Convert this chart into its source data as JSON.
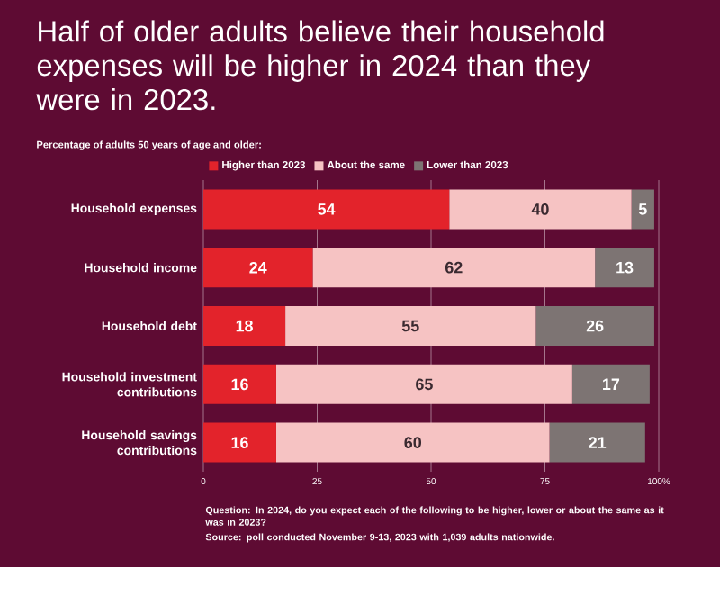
{
  "chart_data": {
    "type": "bar",
    "orientation": "horizontal",
    "stacked": true,
    "data_labels": true,
    "title": "Half of older adults believe their household expenses will be higher in 2024 than they were in 2023.",
    "subtitle": "Percentage of adults 50 years of age and older:",
    "categories": [
      "Household expenses",
      "Household income",
      "Household debt",
      "Household investment contributions",
      "Household savings contributions"
    ],
    "series": [
      {
        "name": "Higher than 2023",
        "color": "#e3232b",
        "values": [
          54,
          24,
          18,
          16,
          16
        ]
      },
      {
        "name": "About the same",
        "color": "#f6c3c3",
        "values": [
          40,
          62,
          55,
          65,
          60
        ]
      },
      {
        "name": "Lower than 2023",
        "color": "#7d7473",
        "values": [
          5,
          13,
          26,
          17,
          21
        ]
      }
    ],
    "xlim": [
      0,
      100
    ],
    "xticks": [
      0,
      25,
      50,
      75,
      {
        "value": 100,
        "label": "100%"
      }
    ],
    "grid": "x",
    "legend": "top",
    "annotations": [
      "Question: In 2024, do you expect each of the following to be higher, lower or about the same as it was in 2023?",
      "Source: poll conducted November 9-13, 2023 with 1,039 adults nationwide."
    ]
  }
}
